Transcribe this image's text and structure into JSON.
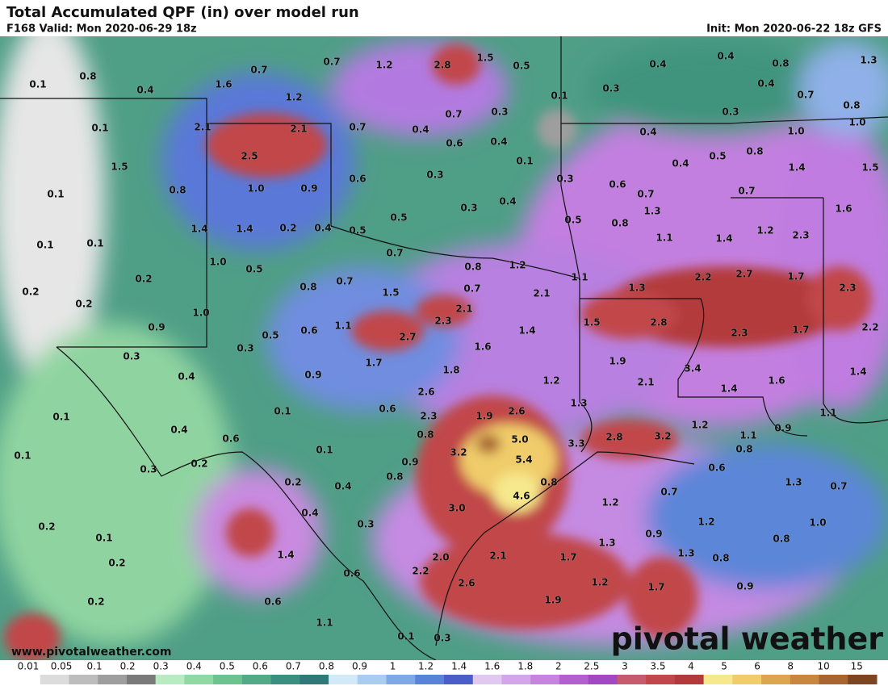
{
  "header": {
    "title": "Total Accumulated QPF (in) over model run",
    "valid": "F168 Valid: Mon 2020-06-29 18z",
    "init": "Init: Mon 2020-06-22 18z GFS"
  },
  "map_labels": [
    "0.7",
    "0.7",
    "1.2",
    "2.8",
    "1.5",
    "0.5",
    "0.4",
    "0.4",
    "0.8",
    "1.3",
    "0.1",
    "0.8",
    "0.4",
    "1.6",
    "1.2",
    "0.3",
    "0.4",
    "0.1",
    "0.7",
    "0.8",
    "0.7",
    "0.3",
    "0.3",
    "0.1",
    "2.1",
    "2.1",
    "0.7",
    "0.4",
    "1.0",
    "1.0",
    "0.6",
    "0.4",
    "0.4",
    "0.5",
    "0.8",
    "2.5",
    "1.5",
    "0.1",
    "0.4",
    "1.4",
    "1.5",
    "0.6",
    "0.3",
    "0.3",
    "0.8",
    "1.0",
    "0.9",
    "0.6",
    "0.7",
    "0.7",
    "0.1",
    "0.3",
    "0.4",
    "1.3",
    "1.2",
    "1.6",
    "0.5",
    "0.5",
    "0.8",
    "1.4",
    "1.4",
    "0.2",
    "0.4",
    "0.5",
    "0.1",
    "0.1",
    "1.1",
    "1.4",
    "2.3",
    "0.7",
    "1.0",
    "0.5",
    "0.8",
    "1.2",
    "0.2",
    "0.2",
    "0.8",
    "0.7",
    "1.1",
    "1.3",
    "2.2",
    "2.7",
    "1.7",
    "2.3",
    "0.7",
    "1.5",
    "2.1",
    "0.2",
    "1.0",
    "2.1",
    "2.3",
    "0.9",
    "0.5",
    "0.6",
    "1.1",
    "2.7",
    "1.4",
    "1.5",
    "2.8",
    "2.3",
    "1.7",
    "2.2",
    "0.3",
    "0.3",
    "1.7",
    "1.6",
    "1.9",
    "3.4",
    "0.4",
    "0.9",
    "1.8",
    "1.2",
    "2.1",
    "1.4",
    "1.6",
    "1.4",
    "0.1",
    "0.1",
    "2.6",
    "0.6",
    "1.3",
    "1.9",
    "2.6",
    "2.3",
    "1.2",
    "0.9",
    "1.1",
    "0.4",
    "0.6",
    "0.8",
    "5.0",
    "3.3",
    "2.8",
    "3.2",
    "1.1",
    "0.1",
    "0.1",
    "3.2",
    "0.9",
    "5.4",
    "0.8",
    "0.3",
    "0.2",
    "0.8",
    "0.8",
    "0.6",
    "0.2",
    "0.4",
    "4.6",
    "0.7",
    "1.3",
    "0.7",
    "0.2",
    "0.4",
    "0.3",
    "3.0",
    "1.2",
    "1.2",
    "1.0",
    "0.1",
    "1.3",
    "0.9",
    "0.8",
    "0.2",
    "1.4",
    "2.0",
    "2.1",
    "1.7",
    "1.3",
    "0.8",
    "0.6",
    "2.2",
    "2.6",
    "1.2",
    "0.9",
    "1.7",
    "0.2",
    "0.6",
    "1.9",
    "1.1",
    "0.1",
    "0.3"
  ],
  "legend": {
    "ticks": [
      "0.01",
      "0.05",
      "0.1",
      "0.2",
      "0.3",
      "0.4",
      "0.5",
      "0.6",
      "0.7",
      "0.8",
      "0.9",
      "1",
      "1.2",
      "1.4",
      "1.6",
      "1.8",
      "2",
      "2.5",
      "3",
      "3.5",
      "4",
      "5",
      "6",
      "8",
      "10",
      "15"
    ],
    "colors": [
      "#ffffff",
      "#dcdcdc",
      "#bdbdbd",
      "#9e9e9e",
      "#7a7a7a",
      "#b7ebc2",
      "#8fd9a4",
      "#6cc38f",
      "#52ab86",
      "#3a9080",
      "#2f7a78",
      "#d2eaf7",
      "#a8cdf0",
      "#7ea8e6",
      "#5884d8",
      "#4a5ec8",
      "#e0c8f0",
      "#d3a6ea",
      "#c783e0",
      "#b45fcf",
      "#a248c0",
      "#c65a6e",
      "#c1474a",
      "#b33a3a",
      "#f6e88c",
      "#f0cc6a",
      "#dca650",
      "#c8863e",
      "#a86530",
      "#7d4522"
    ]
  },
  "watermark": "pivotal weather",
  "url": "www.pivotalweather.com"
}
